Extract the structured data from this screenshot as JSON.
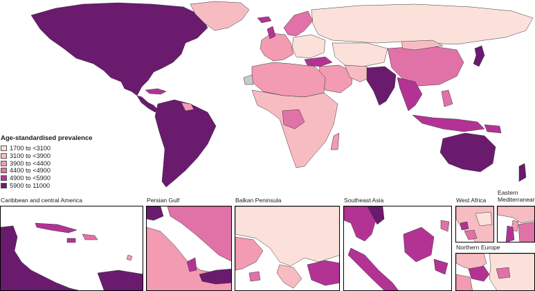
{
  "legend": {
    "title": "Age-standardised prevalence",
    "classes": [
      {
        "label": "1700 to <3100",
        "color": "#fce1db"
      },
      {
        "label": "3100 to <3900",
        "color": "#f7bcc2"
      },
      {
        "label": "3900 to <4400",
        "color": "#f29bb2"
      },
      {
        "label": "4400 to <4900",
        "color": "#e172a8"
      },
      {
        "label": "4900 to <5900",
        "color": "#b33395"
      },
      {
        "label": "5900 to 11000",
        "color": "#6a1b6e"
      }
    ]
  },
  "colors": {
    "no_data": "#c9c9c9",
    "border": "#333333",
    "ocean": "#ffffff"
  },
  "insets": [
    {
      "id": "caribbean",
      "label": "Caribbean and central America"
    },
    {
      "id": "persian-gulf",
      "label": "Persian Gulf"
    },
    {
      "id": "balkan",
      "label": "Balkan Peninsula"
    },
    {
      "id": "southeast-asia",
      "label": "Southeast Asia"
    },
    {
      "id": "west-africa",
      "label": "West Africa"
    },
    {
      "id": "eastern-med",
      "label": "Eastern Mediterranean"
    },
    {
      "id": "northern-europe",
      "label": "Northern Europe"
    }
  ]
}
